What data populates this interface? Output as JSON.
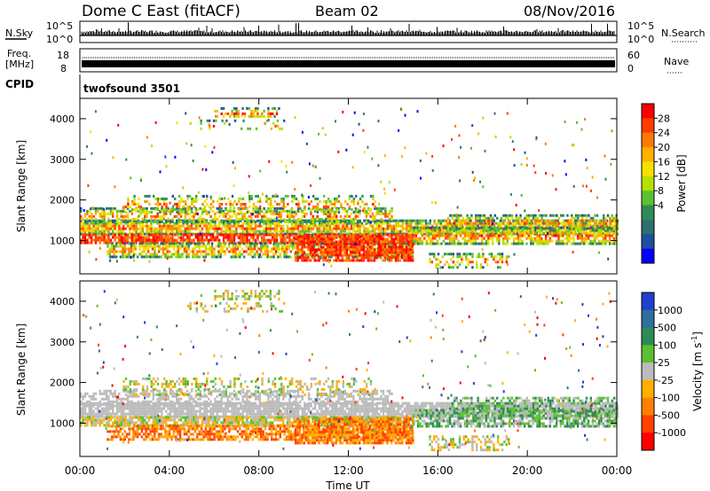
{
  "header": {
    "title": "Dome C East (fitACF)",
    "beam": "Beam 02",
    "date": "08/Nov/2016"
  },
  "sky_panel": {
    "left_label": "N.Sky",
    "right_label": "N.Search",
    "left_ticks": [
      "10^5",
      "10^0"
    ],
    "right_ticks": [
      "10^5",
      "10^0"
    ]
  },
  "freq_panel": {
    "left_label_1": "Freq.",
    "left_label_2": "[MHz]",
    "right_label": "Nave",
    "left_ticks": [
      "18",
      "8"
    ],
    "right_ticks": [
      "60",
      "0"
    ]
  },
  "cpid": {
    "label": "CPID",
    "value": "twofsound 3501"
  },
  "chart_data": [
    {
      "type": "heatmap",
      "name": "power",
      "ylabel": "Slant Range [km]",
      "yticks": [
        "4000",
        "3000",
        "2000",
        "1000"
      ],
      "colorbar": {
        "label": "Power [dB]",
        "ticks": [
          "28",
          "24",
          "20",
          "16",
          "12",
          "8",
          "4"
        ],
        "colors": [
          "#ff0000",
          "#ff3c00",
          "#ff7a00",
          "#ffb000",
          "#f5e000",
          "#b6e000",
          "#5cc030",
          "#2e8b57",
          "#2e7070",
          "#1e4fa0",
          "#0000ff"
        ]
      }
    },
    {
      "type": "heatmap",
      "name": "velocity",
      "ylabel": "Slant Range [km]",
      "yticks": [
        "4000",
        "3000",
        "2000",
        "1000"
      ],
      "colorbar": {
        "label": "Velocity [m s",
        "label_sup": "-1",
        "label_end": "]",
        "ticks": [
          "1000",
          "500",
          "100",
          "25",
          "-25",
          "-100",
          "-500",
          "-1000"
        ],
        "colors": [
          "#2040d0",
          "#2e6fa0",
          "#2e8b57",
          "#5cc030",
          "#bbbbbb",
          "#ffb000",
          "#ff8000",
          "#ff4000",
          "#ff0000"
        ]
      },
      "xticks": [
        "00:00",
        "04:00",
        "08:00",
        "12:00",
        "16:00",
        "20:00",
        "00:00"
      ],
      "xlabel": "Time UT"
    }
  ]
}
